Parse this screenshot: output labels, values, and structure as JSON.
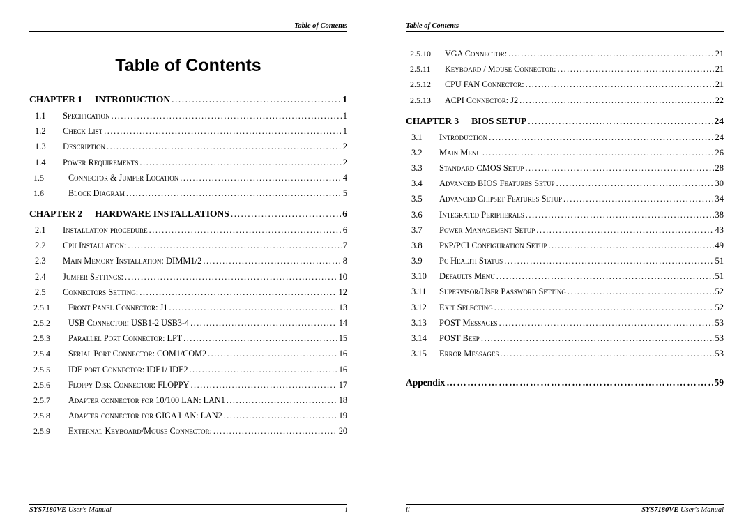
{
  "header_text": "Table of Contents",
  "main_title": "Table of Contents",
  "footer_manual_bold": "SYS7180VE",
  "footer_manual_rest": " User's Manual",
  "page_i": "i",
  "page_ii": "ii",
  "chapters_left": [
    {
      "label": "CHAPTER 1",
      "title": "INTRODUCTION",
      "page": "1",
      "entries": [
        {
          "num": "1.1",
          "txt": "Specification",
          "pg": "1"
        },
        {
          "num": "1.2",
          "txt": "Check List",
          "pg": "1"
        },
        {
          "num": "1.3",
          "txt": "Description",
          "pg": "2"
        },
        {
          "num": "1.4",
          "txt": "Power Requirements",
          "pg": "2"
        },
        {
          "num": "1.5",
          "txt": "Connector & Jumper Location",
          "pg": "4",
          "sub": true
        },
        {
          "num": "1.6",
          "txt": "Block Diagram",
          "pg": "5",
          "sub": true
        }
      ]
    },
    {
      "label": "CHAPTER 2",
      "title": "HARDWARE INSTALLATIONS",
      "page": "6",
      "entries": [
        {
          "num": "2.1",
          "txt": "Installation procedure",
          "pg": "6"
        },
        {
          "num": "2.2",
          "txt": "Cpu Installation:",
          "pg": "7"
        },
        {
          "num": "2.3",
          "txt": "Main Memory Installation: DIMM1/2",
          "pg": "8"
        },
        {
          "num": "2.4",
          "txt": "Jumper Settings:",
          "pg": "10"
        },
        {
          "num": "2.5",
          "txt": "Connectors Setting:",
          "pg": "12"
        },
        {
          "num": "2.5.1",
          "txt": "Front Panel Connector: J1",
          "pg": "13",
          "sub": true
        },
        {
          "num": "2.5.2",
          "txt": "USB Connector: USB1-2 USB3-4",
          "pg": "14",
          "sub": true
        },
        {
          "num": "2.5.3",
          "txt": "Parallel Port Connector: LPT",
          "pg": "15",
          "sub": true
        },
        {
          "num": "2.5.4",
          "txt": "Serial Port Connector: COM1/COM2",
          "pg": "16",
          "sub": true
        },
        {
          "num": "2.5.5",
          "txt": "IDE port Connector: IDE1/ IDE2",
          "pg": "16",
          "sub": true
        },
        {
          "num": "2.5.6",
          "txt": "Floppy Disk Connector: FLOPPY",
          "pg": "17",
          "sub": true
        },
        {
          "num": "2.5.7",
          "txt": "Adapter connector for 10/100 LAN: LAN1",
          "pg": "18",
          "sub": true
        },
        {
          "num": "2.5.8",
          "txt": "Adapter connector for GIGA LAN: LAN2",
          "pg": "19",
          "sub": true
        },
        {
          "num": "2.5.9",
          "txt": "External Keyboard/Mouse Connector:",
          "pg": "20",
          "sub": true
        }
      ]
    }
  ],
  "continuation_right": [
    {
      "num": "2.5.10",
      "txt": "VGA Connector:",
      "pg": "21",
      "sub": true
    },
    {
      "num": "2.5.11",
      "txt": "Keyboard / Mouse Connector:",
      "pg": "21",
      "sub": true
    },
    {
      "num": "2.5.12",
      "txt": "CPU FAN Connector:",
      "pg": "21",
      "sub": true
    },
    {
      "num": "2.5.13",
      "txt": "ACPI Connector: J2",
      "pg": "22",
      "sub": true
    }
  ],
  "chapters_right": [
    {
      "label": "CHAPTER 3",
      "title": "BIOS SETUP",
      "page": "24",
      "entries": [
        {
          "num": "3.1",
          "txt": "Introduction",
          "pg": "24"
        },
        {
          "num": "3.2",
          "txt": "Main Menu",
          "pg": "26"
        },
        {
          "num": "3.3",
          "txt": "Standard CMOS Setup",
          "pg": "28"
        },
        {
          "num": "3.4",
          "txt": "Advanced BIOS Features Setup",
          "pg": "30"
        },
        {
          "num": "3.5",
          "txt": "Advanced Chipset Features Setup",
          "pg": "34"
        },
        {
          "num": "3.6",
          "txt": "Integrated Peripherals",
          "pg": "38"
        },
        {
          "num": "3.7",
          "txt": "Power Management Setup",
          "pg": "43"
        },
        {
          "num": "3.8",
          "txt": "PnP/PCI Configuration Setup",
          "pg": "49"
        },
        {
          "num": "3.9",
          "txt": "Pc Health Status",
          "pg": "51"
        },
        {
          "num": "3.10",
          "txt": "Defaults Menu",
          "pg": "51"
        },
        {
          "num": "3.11",
          "txt": "Supervisor/User Password Setting",
          "pg": "52"
        },
        {
          "num": "3.12",
          "txt": "Exit Selecting",
          "pg": "52"
        },
        {
          "num": "3.13",
          "txt": "POST Messages",
          "pg": "53"
        },
        {
          "num": "3.14",
          "txt": "POST Beep",
          "pg": "53"
        },
        {
          "num": "3.15",
          "txt": "Error Messages",
          "pg": "53"
        }
      ]
    }
  ],
  "appendix_label": "Appendix",
  "appendix_page": "59",
  "colors": {
    "background": "#ffffff",
    "text": "#000000",
    "rule": "#000000"
  }
}
